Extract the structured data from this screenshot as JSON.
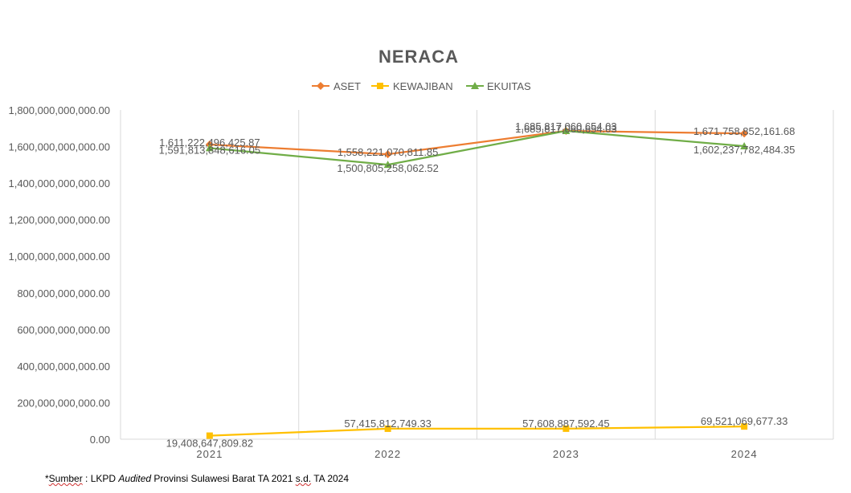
{
  "chart_data": {
    "type": "line",
    "title": "NERACA",
    "categories": [
      "2021",
      "2022",
      "2023",
      "2024"
    ],
    "ylim": [
      0,
      1800000000000
    ],
    "y_ticks": [
      0,
      200000000000,
      400000000000,
      600000000000,
      800000000000,
      1000000000000,
      1200000000000,
      1400000000000,
      1600000000000,
      1800000000000
    ],
    "y_tick_labels": [
      "0.00",
      "200,000,000,000.00",
      "400,000,000,000.00",
      "600,000,000,000.00",
      "800,000,000,000.00",
      "1,000,000,000,000.00",
      "1,200,000,000,000.00",
      "1,400,000,000,000.00",
      "1,600,000,000,000.00",
      "1,800,000,000,000.00"
    ],
    "grid": "vertical",
    "legend_position": "top",
    "series": [
      {
        "name": "ASET",
        "color": "#ED7D31",
        "marker": "diamond",
        "values": [
          1611222496425.87,
          1558221070811.85,
          1685817060654.03,
          1671758852161.68
        ],
        "labels": [
          "1,611,222,496,425.87",
          "1,558,221,070,811.85",
          "1,685,817,060,654.03",
          "1,671,758,852,161.68"
        ]
      },
      {
        "name": "KEWAJIBAN",
        "color": "#FFC000",
        "marker": "square",
        "values": [
          19408647809.82,
          57415812749.33,
          57608887592.45,
          69521069677.33
        ],
        "labels": [
          "19,408,647,809.82",
          "57,415,812,749.33",
          "57,608,887,592.45",
          "69,521,069,677.33"
        ]
      },
      {
        "name": "EKUITAS",
        "color": "#70AD47",
        "marker": "triangle",
        "values": [
          1591813848616.05,
          1500805258062.52,
          1685817060654.03,
          1602237782484.35
        ],
        "labels": [
          "1,591,813,848,616.05",
          "1,500,805,258,062.52",
          "1,685,817,060,654.03",
          "1,602,237,782,484.35"
        ]
      }
    ]
  },
  "source_note": {
    "prefix": "*",
    "sumber": "Sumber",
    "part1": " : LKPD ",
    "audited": "Audited",
    "part2": " Provinsi Sulawesi Barat TA 2021 ",
    "sd": "s.d.",
    "part3": " TA 2024"
  }
}
